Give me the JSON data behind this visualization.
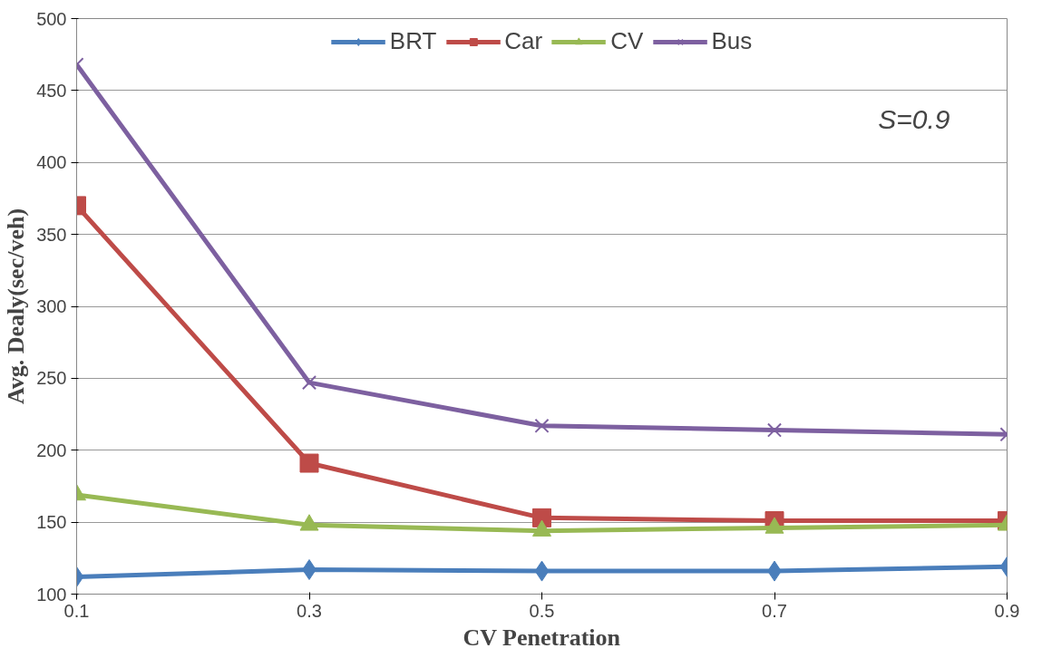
{
  "chart_data": {
    "type": "line",
    "xlabel": "CV Penetration",
    "ylabel": "Avg. Dealy(sec/veh)",
    "x": [
      0.1,
      0.3,
      0.5,
      0.7,
      0.9
    ],
    "series": [
      {
        "name": "BRT",
        "color": "#4a7ebb",
        "marker": "diamond",
        "values": [
          112,
          117,
          116,
          116,
          119
        ]
      },
      {
        "name": "Car",
        "color": "#be4b48",
        "marker": "square",
        "values": [
          370,
          191,
          153,
          151,
          151
        ]
      },
      {
        "name": "CV",
        "color": "#98b954",
        "marker": "triangle",
        "values": [
          169,
          148,
          144,
          146,
          148
        ]
      },
      {
        "name": "Bus",
        "color": "#7d60a0",
        "marker": "cross",
        "values": [
          468,
          247,
          217,
          214,
          211
        ]
      }
    ],
    "xlim": [
      0.1,
      0.9
    ],
    "xticks": [
      0.1,
      0.3,
      0.5,
      0.7,
      0.9
    ],
    "ylim": [
      100,
      500
    ],
    "yticks": [
      100,
      150,
      200,
      250,
      300,
      350,
      400,
      450,
      500
    ],
    "grid": "y",
    "legend": "top",
    "line_style": "solid",
    "annotations": [
      "S=0.9"
    ]
  }
}
